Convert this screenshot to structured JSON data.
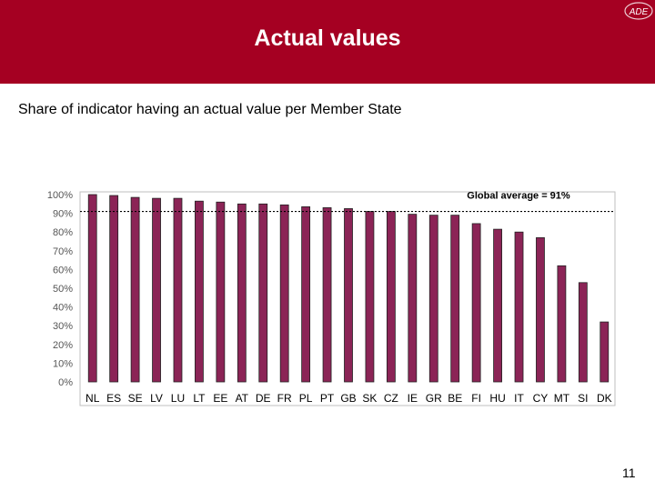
{
  "slide": {
    "title": "Actual values",
    "subtitle": "Share of indicator having an actual value per Member State",
    "page_number": "11",
    "logo_text": "ADE",
    "banner_color": "#a50022",
    "bar_color": "#8b2456"
  },
  "chart_data": {
    "type": "bar",
    "title": "",
    "xlabel": "",
    "ylabel": "",
    "categories": [
      "NL",
      "ES",
      "SE",
      "LV",
      "LU",
      "LT",
      "EE",
      "AT",
      "DE",
      "FR",
      "PL",
      "PT",
      "GB",
      "SK",
      "CZ",
      "IE",
      "GR",
      "BE",
      "FI",
      "HU",
      "IT",
      "CY",
      "MT",
      "SI",
      "DK"
    ],
    "values": [
      100,
      99.5,
      98.5,
      98,
      98,
      96.5,
      96,
      95,
      95,
      94.5,
      93.5,
      93,
      92.5,
      91,
      91,
      89.5,
      89,
      89,
      84.5,
      81.5,
      80,
      77,
      62,
      53,
      32
    ],
    "ylim": [
      0,
      100
    ],
    "yticks": [
      "0%",
      "10%",
      "20%",
      "30%",
      "40%",
      "50%",
      "60%",
      "70%",
      "80%",
      "90%",
      "100%"
    ],
    "grid": false,
    "reference_line": {
      "value": 91,
      "label": "Global average = 91%"
    }
  }
}
